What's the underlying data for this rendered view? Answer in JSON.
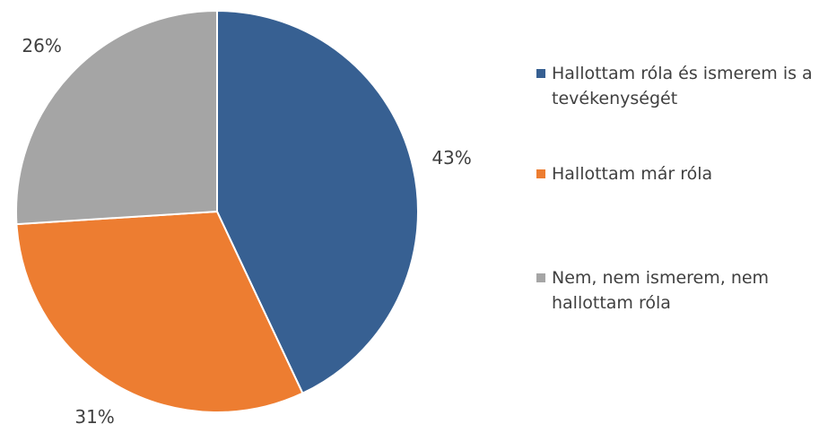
{
  "chart_data": {
    "type": "pie",
    "categories": [
      "Hallottam róla és ismerem is a tevékenységét",
      "Hallottam már róla",
      "Nem, nem ismerem, nem hallottam róla"
    ],
    "values": [
      43,
      31,
      26
    ],
    "value_labels": [
      "43%",
      "31%",
      "26%"
    ],
    "colors": [
      "#376092",
      "#ed7d31",
      "#a5a5a5"
    ],
    "legend": "right"
  }
}
